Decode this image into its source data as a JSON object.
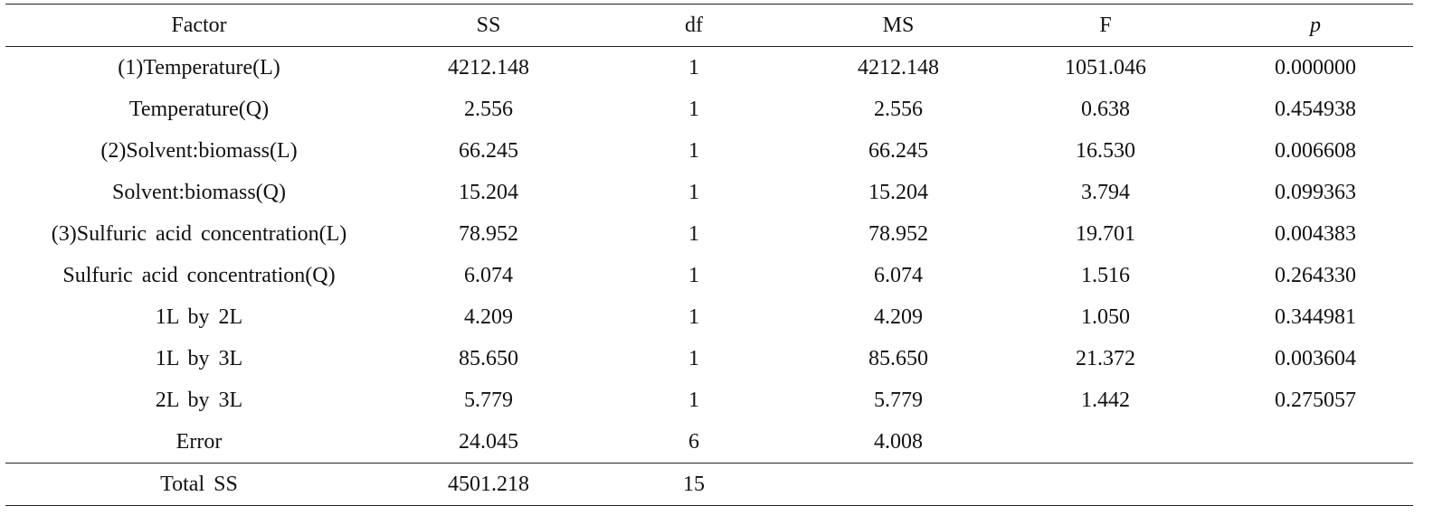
{
  "table": {
    "header": [
      "Factor",
      "SS",
      "df",
      "MS",
      "F",
      "p"
    ],
    "rows": [
      [
        "(1)Temperature(L)",
        "4212.148",
        "1",
        "4212.148",
        "1051.046",
        "0.000000"
      ],
      [
        "Temperature(Q)",
        "2.556",
        "1",
        "2.556",
        "0.638",
        "0.454938"
      ],
      [
        "(2)Solvent:biomass(L)",
        "66.245",
        "1",
        "66.245",
        "16.530",
        "0.006608"
      ],
      [
        "Solvent:biomass(Q)",
        "15.204",
        "1",
        "15.204",
        "3.794",
        "0.099363"
      ],
      [
        "(3)Sulfuric acid concentration(L)",
        "78.952",
        "1",
        "78.952",
        "19.701",
        "0.004383"
      ],
      [
        "Sulfuric acid concentration(Q)",
        "6.074",
        "1",
        "6.074",
        "1.516",
        "0.264330"
      ],
      [
        "1L by 2L",
        "4.209",
        "1",
        "4.209",
        "1.050",
        "0.344981"
      ],
      [
        "1L by 3L",
        "85.650",
        "1",
        "85.650",
        "21.372",
        "0.003604"
      ],
      [
        "2L by 3L",
        "5.779",
        "1",
        "5.779",
        "1.442",
        "0.275057"
      ],
      [
        "Error",
        "24.045",
        "6",
        "4.008"
      ]
    ],
    "total": [
      "Total SS",
      "4501.218",
      "15"
    ]
  }
}
